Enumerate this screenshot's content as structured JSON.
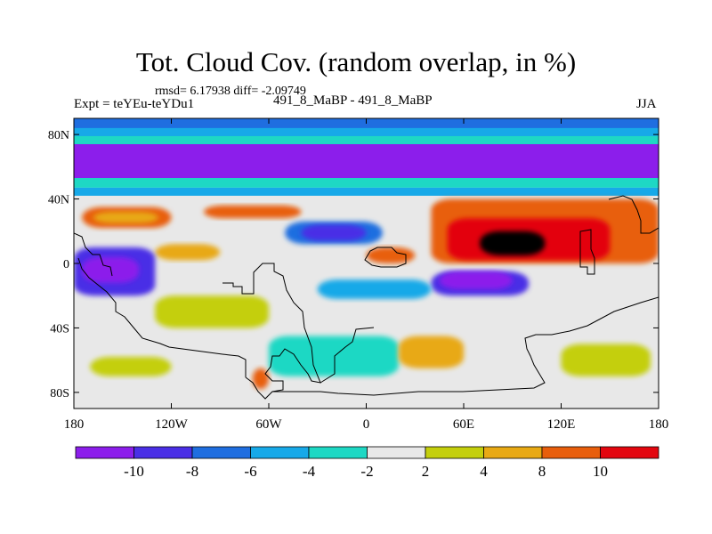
{
  "header": {
    "title": "Tot. Cloud Cov. (random overlap, in %)",
    "stats": "rmsd= 6.17938 diff= -2.09749",
    "experiment": "Expt = teYEu-teYDu1",
    "period_label": "491_8_MaBP - 491_8_MaBP",
    "season": "JJA"
  },
  "chart_data": {
    "type": "heatmap",
    "title": "Tot. Cloud Cov. (random overlap, in %)",
    "subtitle": "491_8_MaBP - 491_8_MaBP",
    "xlabel": "",
    "ylabel": "",
    "xlim": [
      -180,
      180
    ],
    "ylim": [
      -90,
      90
    ],
    "x_ticks": [
      {
        "value": -180,
        "label": "180"
      },
      {
        "value": -120,
        "label": "120W"
      },
      {
        "value": -60,
        "label": "60W"
      },
      {
        "value": 0,
        "label": "0"
      },
      {
        "value": 60,
        "label": "60E"
      },
      {
        "value": 120,
        "label": "120E"
      },
      {
        "value": 180,
        "label": "180"
      }
    ],
    "y_ticks": [
      {
        "value": 80,
        "label": "80N"
      },
      {
        "value": 40,
        "label": "40N"
      },
      {
        "value": 0,
        "label": "0"
      },
      {
        "value": -40,
        "label": "40S"
      },
      {
        "value": -80,
        "label": "80S"
      }
    ],
    "colorbar": {
      "levels": [
        -10,
        -8,
        -6,
        -4,
        -2,
        2,
        4,
        8,
        10
      ],
      "labels": [
        "-10",
        "-8",
        "-6",
        "-4",
        "-2",
        "2",
        "4",
        "8",
        "10"
      ],
      "colors": [
        "#8c1eeb",
        "#4a2fe6",
        "#1f6ee0",
        "#17a9e8",
        "#1ed8c4",
        "#e8e8e8",
        "#c4cf0c",
        "#e8a914",
        "#e85e0c",
        "#e3060f"
      ]
    },
    "fields": [
      {
        "lon": [
          -180,
          180
        ],
        "lat": [
          68,
          80
        ],
        "level": 1
      },
      {
        "lon": [
          -180,
          180
        ],
        "lat": [
          63,
          74
        ],
        "level": 0
      },
      {
        "lon": [
          -180,
          180
        ],
        "lat": [
          52,
          68
        ],
        "level": 0
      },
      {
        "lon": [
          -180,
          180
        ],
        "lat": [
          83,
          90
        ],
        "level": 2
      },
      {
        "lon": [
          -180,
          180
        ],
        "lat": [
          78,
          84
        ],
        "level": 3
      },
      {
        "lon": [
          -180,
          180
        ],
        "lat": [
          74,
          79
        ],
        "level": 4
      },
      {
        "lon": [
          -180,
          180
        ],
        "lat": [
          47,
          53
        ],
        "level": 4
      },
      {
        "lon": [
          -180,
          180
        ],
        "lat": [
          42,
          47
        ],
        "level": 3
      },
      {
        "lon": [
          -175,
          -120
        ],
        "lat": [
          22,
          35
        ],
        "level": 8
      },
      {
        "lon": [
          -168,
          -128
        ],
        "lat": [
          25,
          32
        ],
        "level": 7
      },
      {
        "lon": [
          -100,
          -40
        ],
        "lat": [
          28,
          36
        ],
        "level": 8
      },
      {
        "lon": [
          -50,
          10
        ],
        "lat": [
          12,
          26
        ],
        "level": 2
      },
      {
        "lon": [
          -40,
          0
        ],
        "lat": [
          14,
          24
        ],
        "level": 1
      },
      {
        "lon": [
          -130,
          -90
        ],
        "lat": [
          2,
          12
        ],
        "level": 7
      },
      {
        "lon": [
          0,
          30
        ],
        "lat": [
          0,
          10
        ],
        "level": 8
      },
      {
        "lon": [
          40,
          180
        ],
        "lat": [
          0,
          40
        ],
        "level": 8
      },
      {
        "lon": [
          50,
          150
        ],
        "lat": [
          2,
          28
        ],
        "level": 9
      },
      {
        "lon": [
          70,
          110
        ],
        "lat": [
          5,
          20
        ],
        "level": 10
      },
      {
        "lon": [
          -180,
          -130
        ],
        "lat": [
          -20,
          10
        ],
        "level": 1
      },
      {
        "lon": [
          -175,
          -140
        ],
        "lat": [
          -12,
          4
        ],
        "level": 0
      },
      {
        "lon": [
          40,
          100
        ],
        "lat": [
          -20,
          -5
        ],
        "level": 1
      },
      {
        "lon": [
          45,
          90
        ],
        "lat": [
          -16,
          -5
        ],
        "level": 0
      },
      {
        "lon": [
          -30,
          40
        ],
        "lat": [
          -22,
          -10
        ],
        "level": 3
      },
      {
        "lon": [
          -130,
          -60
        ],
        "lat": [
          -40,
          -20
        ],
        "level": 6
      },
      {
        "lon": [
          -60,
          20
        ],
        "lat": [
          -70,
          -45
        ],
        "level": 4
      },
      {
        "lon": [
          20,
          60
        ],
        "lat": [
          -65,
          -45
        ],
        "level": 7
      },
      {
        "lon": [
          -170,
          -120
        ],
        "lat": [
          -70,
          -58
        ],
        "level": 6
      },
      {
        "lon": [
          120,
          175
        ],
        "lat": [
          -70,
          -50
        ],
        "level": 6
      },
      {
        "lon": [
          -70,
          -60
        ],
        "lat": [
          -78,
          -65
        ],
        "level": 8
      }
    ]
  }
}
